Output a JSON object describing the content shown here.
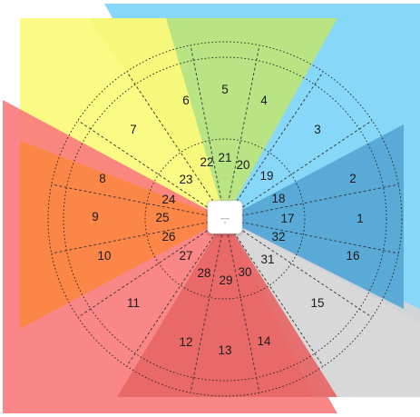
{
  "diagram": {
    "sectors": [
      {
        "label": "1",
        "color": "#55a6d4"
      },
      {
        "label": "2",
        "color": "#55a6d4"
      },
      {
        "label": "3",
        "color": "#7dd4f7"
      },
      {
        "label": "4",
        "color": "#bde57a"
      },
      {
        "label": "5",
        "color": "#bde57a"
      },
      {
        "label": "6",
        "color": "#bde57a"
      },
      {
        "label": "7",
        "color": "#fafa7a"
      },
      {
        "label": "8",
        "color": "#fb8642"
      },
      {
        "label": "9",
        "color": "#fb8642"
      },
      {
        "label": "10",
        "color": "#fb8642"
      },
      {
        "label": "11",
        "color": "#fa7d7d"
      },
      {
        "label": "12",
        "color": "#e76666"
      },
      {
        "label": "13",
        "color": "#e76666"
      },
      {
        "label": "14",
        "color": "#e76666"
      },
      {
        "label": "15",
        "color": "#d5d5d5"
      },
      {
        "label": "16",
        "color": "#55a6d4"
      }
    ],
    "inner_labels": [
      "17",
      "18",
      "19",
      "20",
      "21",
      "22",
      "23",
      "24",
      "25",
      "26",
      "27",
      "28",
      "29",
      "30",
      "31",
      "32"
    ],
    "device_icon": "access-point-icon"
  }
}
